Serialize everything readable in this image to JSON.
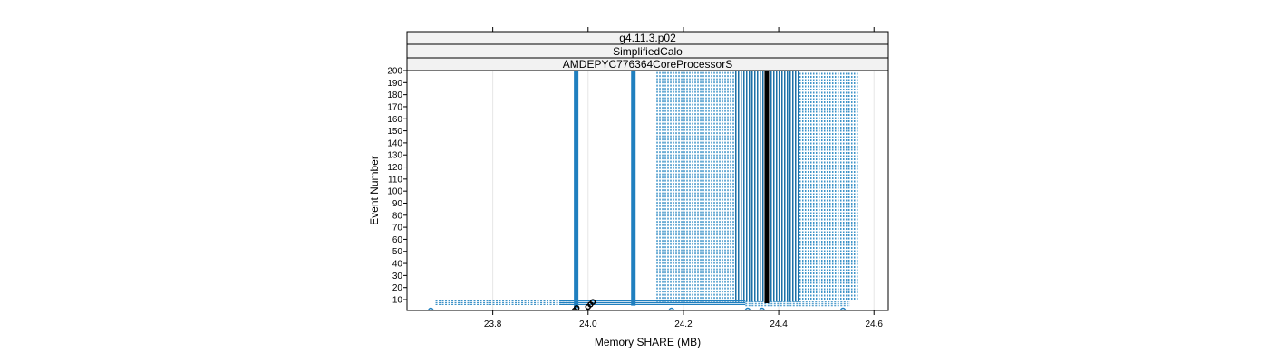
{
  "chart_data": {
    "type": "scatter",
    "strips": [
      "g4.11.3.p02",
      "SimplifiedCalo",
      "AMDEPYC776364CoreProcessorS"
    ],
    "xlabel": "Memory SHARE (MB)",
    "ylabel": "Event Number",
    "xlim": [
      23.62,
      24.63
    ],
    "ylim": [
      1,
      200
    ],
    "x_ticks": [
      23.8,
      24.0,
      24.2,
      24.4,
      24.6
    ],
    "x_tick_labels": [
      "23.8",
      "24.0",
      "24.2",
      "24.4",
      "24.6"
    ],
    "y_ticks": [
      10,
      20,
      30,
      40,
      50,
      60,
      70,
      80,
      90,
      100,
      110,
      120,
      130,
      140,
      150,
      160,
      170,
      180,
      190,
      200
    ],
    "y_tick_labels": [
      "10",
      "20",
      "30",
      "40",
      "50",
      "60",
      "70",
      "80",
      "90",
      "100",
      "110",
      "120",
      "130",
      "140",
      "150",
      "160",
      "170",
      "180",
      "190",
      "200"
    ],
    "grid": "vertical",
    "colors": {
      "blue": "#0080ff",
      "black": "#000000",
      "strip_bg": "#f2f2f2"
    },
    "series": [
      {
        "style": "solid",
        "color": "#1f7fbf",
        "x_values": [
          23.975
        ],
        "y_range": [
          3,
          200
        ]
      },
      {
        "style": "solid",
        "color": "#1f7fbf",
        "x_values": [
          24.095
        ],
        "y_range": [
          5,
          200
        ]
      },
      {
        "style": "solid",
        "color": "#1a6fa6",
        "x_range": [
          24.31,
          24.445
        ],
        "y_range": [
          8,
          200
        ]
      },
      {
        "style": "dashed",
        "color": "#3e93c8",
        "x_range": [
          24.145,
          24.31
        ],
        "y_range": [
          8,
          200
        ]
      },
      {
        "style": "dashed",
        "color": "#3e93c8",
        "x_range": [
          24.445,
          24.57
        ],
        "y_range": [
          10,
          200
        ]
      },
      {
        "style": "dashed",
        "color": "#3e93c8",
        "x_range": [
          23.68,
          23.965
        ],
        "y_range": [
          5,
          9
        ]
      },
      {
        "style": "solid",
        "color": "#1f7fbf",
        "x_range": [
          23.94,
          24.33
        ],
        "y_range": [
          5,
          9
        ]
      },
      {
        "style": "dashed",
        "color": "#3e93c8",
        "x_range": [
          24.33,
          24.55
        ],
        "y_range": [
          4,
          8
        ]
      },
      {
        "style": "solid",
        "color": "#000000",
        "x_values": [
          24.375
        ],
        "y_range": [
          7,
          200
        ]
      },
      {
        "style": "points",
        "color": "#000000",
        "points": [
          [
            23.972,
            1
          ],
          [
            23.976,
            3
          ],
          [
            24.0,
            4
          ],
          [
            24.005,
            6
          ],
          [
            24.01,
            8
          ]
        ]
      },
      {
        "style": "points",
        "color": "#1f7fbf",
        "points": [
          [
            23.67,
            1
          ],
          [
            24.175,
            1
          ],
          [
            24.335,
            1
          ],
          [
            24.365,
            1
          ],
          [
            24.535,
            1
          ]
        ]
      }
    ]
  }
}
